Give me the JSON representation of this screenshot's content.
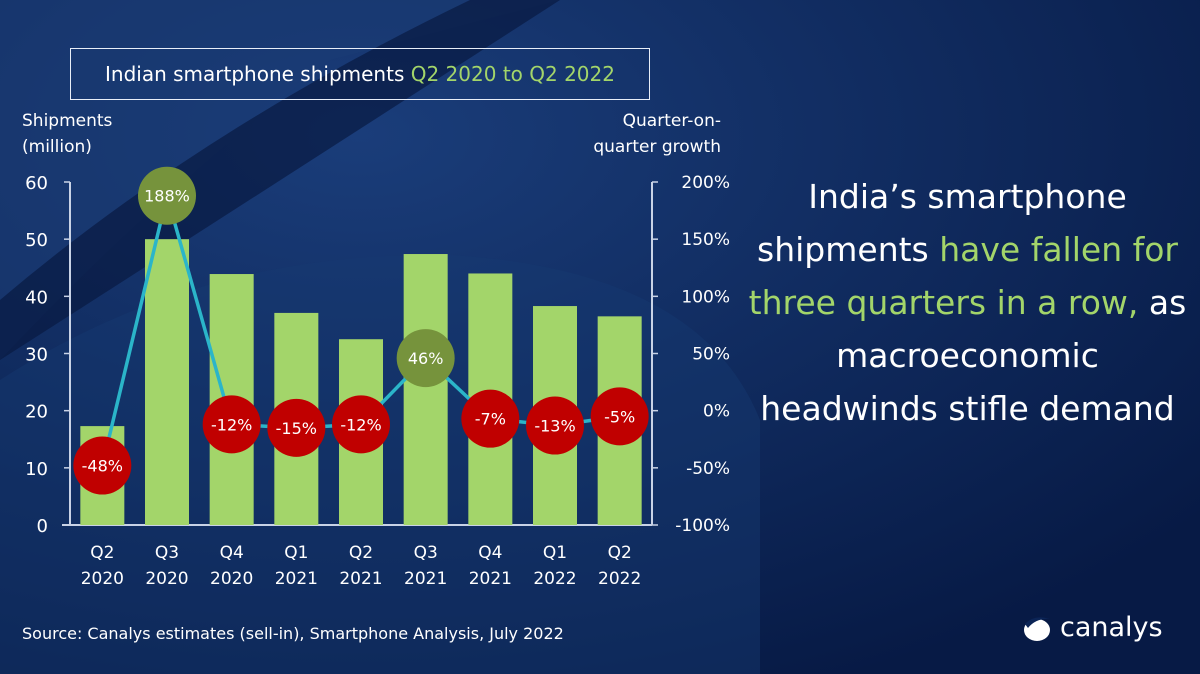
{
  "title": {
    "prefix": "Indian smartphone shipments ",
    "highlight": "Q2 2020 to Q2 2022"
  },
  "headline": {
    "part1": "India’s smartphone shipments ",
    "highlight": "have fallen for three quarters in a row,",
    "part2": " as macroeconomic headwinds stifle demand"
  },
  "source": "Source: Canalys estimates (sell-in), Smartphone Analysis, July 2022",
  "logo": {
    "text": "canalys",
    "icon": "canalys-swoosh-icon"
  },
  "colors": {
    "background": "#0b2456",
    "bar": "#a3d56a",
    "line": "#2bb5c9",
    "positive_bubble": "#76933c",
    "negative_bubble": "#c00000",
    "highlight_text": "#a3d56a"
  },
  "chart_data": {
    "type": "bar+line",
    "left_axis": {
      "label_line1": "Shipments",
      "label_line2": "(million)",
      "range": [
        0,
        60
      ],
      "ticks": [
        "0",
        "10",
        "20",
        "30",
        "40",
        "50",
        "60"
      ]
    },
    "right_axis": {
      "label_line1": "Quarter-on-",
      "label_line2": "quarter growth",
      "range": [
        -100,
        200
      ],
      "ticks": [
        "-100%",
        "-50%",
        "0%",
        "50%",
        "100%",
        "150%",
        "200%"
      ]
    },
    "categories": [
      [
        "Q2",
        "2020"
      ],
      [
        "Q3",
        "2020"
      ],
      [
        "Q4",
        "2020"
      ],
      [
        "Q1",
        "2021"
      ],
      [
        "Q2",
        "2021"
      ],
      [
        "Q3",
        "2021"
      ],
      [
        "Q4",
        "2021"
      ],
      [
        "Q1",
        "2022"
      ],
      [
        "Q2",
        "2022"
      ]
    ],
    "series": [
      {
        "type": "bar",
        "axis": "left",
        "values": [
          17.3,
          50.0,
          43.9,
          37.1,
          32.5,
          47.4,
          44.0,
          38.3,
          36.5
        ]
      },
      {
        "type": "line",
        "axis": "right",
        "values": [
          -48,
          188,
          -12,
          -15,
          -12,
          46,
          -7,
          -13,
          -5
        ],
        "labels": [
          "-48%",
          "188%",
          "-12%",
          "-15%",
          "-12%",
          "46%",
          "-7%",
          "-13%",
          "-5%"
        ]
      }
    ],
    "grid": false
  }
}
